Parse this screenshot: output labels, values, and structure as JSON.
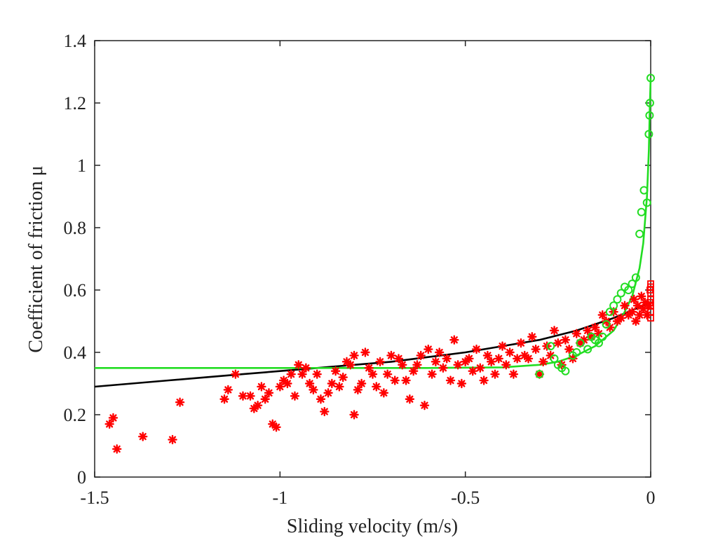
{
  "chart_data": {
    "type": "scatter",
    "title": "",
    "xlabel": "Sliding velocity (m/s)",
    "ylabel": "Coefficient of friction μ",
    "xlim": [
      -1.5,
      0
    ],
    "ylim": [
      0,
      1.4
    ],
    "xticks": [
      -1.5,
      -1,
      -0.5,
      0
    ],
    "xtick_labels": [
      "-1.5",
      "-1",
      "-0.5",
      "0"
    ],
    "yticks": [
      0,
      0.2,
      0.4,
      0.6,
      0.8,
      1,
      1.2,
      1.4
    ],
    "ytick_labels": [
      "0",
      "0.2",
      "0.4",
      "0.6",
      "0.8",
      "1",
      "1.2",
      "1.4"
    ],
    "grid": false,
    "colors": {
      "red": "#ff0000",
      "green": "#22dd22",
      "black": "#000000"
    },
    "series": [
      {
        "kind": "scatter",
        "marker": "asterisk",
        "color": "#ff0000",
        "points": [
          [
            -1.46,
            0.17
          ],
          [
            -1.45,
            0.19
          ],
          [
            -1.44,
            0.09
          ],
          [
            -1.37,
            0.13
          ],
          [
            -1.29,
            0.12
          ],
          [
            -1.27,
            0.24
          ],
          [
            -1.15,
            0.25
          ],
          [
            -1.14,
            0.28
          ],
          [
            -1.12,
            0.33
          ],
          [
            -1.1,
            0.26
          ],
          [
            -1.08,
            0.26
          ],
          [
            -1.07,
            0.22
          ],
          [
            -1.06,
            0.23
          ],
          [
            -1.05,
            0.29
          ],
          [
            -1.04,
            0.25
          ],
          [
            -1.03,
            0.27
          ],
          [
            -1.02,
            0.17
          ],
          [
            -1.01,
            0.16
          ],
          [
            -1.0,
            0.29
          ],
          [
            -0.99,
            0.31
          ],
          [
            -0.98,
            0.3
          ],
          [
            -0.97,
            0.33
          ],
          [
            -0.96,
            0.26
          ],
          [
            -0.95,
            0.36
          ],
          [
            -0.94,
            0.33
          ],
          [
            -0.93,
            0.35
          ],
          [
            -0.92,
            0.3
          ],
          [
            -0.91,
            0.28
          ],
          [
            -0.9,
            0.33
          ],
          [
            -0.89,
            0.25
          ],
          [
            -0.88,
            0.21
          ],
          [
            -0.87,
            0.27
          ],
          [
            -0.86,
            0.3
          ],
          [
            -0.85,
            0.34
          ],
          [
            -0.84,
            0.29
          ],
          [
            -0.83,
            0.32
          ],
          [
            -0.82,
            0.37
          ],
          [
            -0.81,
            0.36
          ],
          [
            -0.8,
            0.2
          ],
          [
            -0.8,
            0.39
          ],
          [
            -0.79,
            0.28
          ],
          [
            -0.78,
            0.3
          ],
          [
            -0.77,
            0.4
          ],
          [
            -0.76,
            0.35
          ],
          [
            -0.75,
            0.33
          ],
          [
            -0.74,
            0.29
          ],
          [
            -0.73,
            0.37
          ],
          [
            -0.72,
            0.27
          ],
          [
            -0.71,
            0.33
          ],
          [
            -0.7,
            0.39
          ],
          [
            -0.69,
            0.31
          ],
          [
            -0.68,
            0.38
          ],
          [
            -0.67,
            0.36
          ],
          [
            -0.66,
            0.31
          ],
          [
            -0.65,
            0.25
          ],
          [
            -0.64,
            0.34
          ],
          [
            -0.63,
            0.36
          ],
          [
            -0.62,
            0.39
          ],
          [
            -0.61,
            0.23
          ],
          [
            -0.6,
            0.41
          ],
          [
            -0.59,
            0.33
          ],
          [
            -0.58,
            0.37
          ],
          [
            -0.57,
            0.4
          ],
          [
            -0.56,
            0.35
          ],
          [
            -0.55,
            0.38
          ],
          [
            -0.54,
            0.31
          ],
          [
            -0.53,
            0.44
          ],
          [
            -0.52,
            0.36
          ],
          [
            -0.51,
            0.3
          ],
          [
            -0.5,
            0.37
          ],
          [
            -0.49,
            0.38
          ],
          [
            -0.48,
            0.34
          ],
          [
            -0.47,
            0.41
          ],
          [
            -0.46,
            0.35
          ],
          [
            -0.45,
            0.31
          ],
          [
            -0.44,
            0.39
          ],
          [
            -0.43,
            0.37
          ],
          [
            -0.42,
            0.33
          ],
          [
            -0.41,
            0.38
          ],
          [
            -0.4,
            0.42
          ],
          [
            -0.39,
            0.36
          ],
          [
            -0.38,
            0.4
          ],
          [
            -0.37,
            0.33
          ],
          [
            -0.36,
            0.38
          ],
          [
            -0.35,
            0.43
          ],
          [
            -0.34,
            0.39
          ],
          [
            -0.33,
            0.38
          ],
          [
            -0.32,
            0.45
          ],
          [
            -0.31,
            0.41
          ],
          [
            -0.3,
            0.33
          ],
          [
            -0.29,
            0.37
          ],
          [
            -0.28,
            0.42
          ],
          [
            -0.27,
            0.39
          ],
          [
            -0.26,
            0.47
          ],
          [
            -0.25,
            0.43
          ],
          [
            -0.24,
            0.36
          ],
          [
            -0.23,
            0.44
          ],
          [
            -0.22,
            0.41
          ],
          [
            -0.21,
            0.38
          ],
          [
            -0.2,
            0.46
          ],
          [
            -0.19,
            0.43
          ],
          [
            -0.18,
            0.44
          ],
          [
            -0.17,
            0.47
          ],
          [
            -0.16,
            0.45
          ],
          [
            -0.15,
            0.48
          ],
          [
            -0.14,
            0.46
          ],
          [
            -0.13,
            0.52
          ],
          [
            -0.12,
            0.5
          ],
          [
            -0.11,
            0.48
          ],
          [
            -0.1,
            0.53
          ],
          [
            -0.09,
            0.5
          ],
          [
            -0.08,
            0.51
          ],
          [
            -0.07,
            0.55
          ],
          [
            -0.06,
            0.52
          ],
          [
            -0.05,
            0.53
          ],
          [
            -0.045,
            0.57
          ],
          [
            -0.04,
            0.5
          ],
          [
            -0.035,
            0.55
          ],
          [
            -0.03,
            0.52
          ],
          [
            -0.025,
            0.58
          ],
          [
            -0.02,
            0.54
          ],
          [
            -0.015,
            0.56
          ],
          [
            -0.01,
            0.52
          ],
          [
            -0.005,
            0.55
          ]
        ]
      },
      {
        "kind": "scatter",
        "marker": "square",
        "color": "#ff0000",
        "points": [
          [
            0,
            0.51
          ],
          [
            0,
            0.53
          ],
          [
            0,
            0.55
          ],
          [
            0,
            0.57
          ],
          [
            0,
            0.59
          ],
          [
            0,
            0.61
          ],
          [
            0,
            0.62
          ],
          [
            -0.002,
            0.56
          ],
          [
            -0.002,
            0.6
          ]
        ]
      },
      {
        "kind": "scatter",
        "marker": "circle",
        "color": "#22dd22",
        "points": [
          [
            -0.3,
            0.33
          ],
          [
            -0.27,
            0.42
          ],
          [
            -0.26,
            0.38
          ],
          [
            -0.25,
            0.36
          ],
          [
            -0.24,
            0.35
          ],
          [
            -0.23,
            0.34
          ],
          [
            -0.21,
            0.39
          ],
          [
            -0.2,
            0.4
          ],
          [
            -0.19,
            0.43
          ],
          [
            -0.17,
            0.41
          ],
          [
            -0.16,
            0.45
          ],
          [
            -0.15,
            0.44
          ],
          [
            -0.14,
            0.43
          ],
          [
            -0.13,
            0.45
          ],
          [
            -0.12,
            0.49
          ],
          [
            -0.11,
            0.53
          ],
          [
            -0.1,
            0.55
          ],
          [
            -0.09,
            0.57
          ],
          [
            -0.08,
            0.59
          ],
          [
            -0.07,
            0.61
          ],
          [
            -0.06,
            0.6
          ],
          [
            -0.05,
            0.62
          ],
          [
            -0.04,
            0.64
          ],
          [
            -0.03,
            0.78
          ],
          [
            -0.025,
            0.85
          ],
          [
            -0.018,
            0.92
          ],
          [
            -0.01,
            0.88
          ],
          [
            -0.005,
            1.1
          ],
          [
            -0.003,
            1.16
          ],
          [
            -0.002,
            1.2
          ],
          [
            0,
            1.28
          ]
        ]
      },
      {
        "kind": "line",
        "color": "#000000",
        "points": [
          [
            -1.5,
            0.29
          ],
          [
            -1.4,
            0.3
          ],
          [
            -1.3,
            0.31
          ],
          [
            -1.2,
            0.32
          ],
          [
            -1.1,
            0.33
          ],
          [
            -1.0,
            0.34
          ],
          [
            -0.9,
            0.35
          ],
          [
            -0.8,
            0.36
          ],
          [
            -0.7,
            0.37
          ],
          [
            -0.6,
            0.385
          ],
          [
            -0.5,
            0.4
          ],
          [
            -0.4,
            0.42
          ],
          [
            -0.3,
            0.44
          ],
          [
            -0.2,
            0.47
          ],
          [
            -0.1,
            0.51
          ],
          [
            0,
            0.56
          ]
        ]
      },
      {
        "kind": "line",
        "color": "#22dd22",
        "points": [
          [
            -1.5,
            0.35
          ],
          [
            -1.0,
            0.35
          ],
          [
            -0.6,
            0.35
          ],
          [
            -0.4,
            0.352
          ],
          [
            -0.3,
            0.36
          ],
          [
            -0.25,
            0.37
          ],
          [
            -0.2,
            0.39
          ],
          [
            -0.15,
            0.42
          ],
          [
            -0.1,
            0.47
          ],
          [
            -0.07,
            0.53
          ],
          [
            -0.05,
            0.58
          ],
          [
            -0.03,
            0.67
          ],
          [
            -0.02,
            0.75
          ],
          [
            -0.01,
            0.9
          ],
          [
            -0.005,
            1.05
          ],
          [
            -0.002,
            1.2
          ],
          [
            0,
            1.28
          ]
        ]
      }
    ]
  }
}
